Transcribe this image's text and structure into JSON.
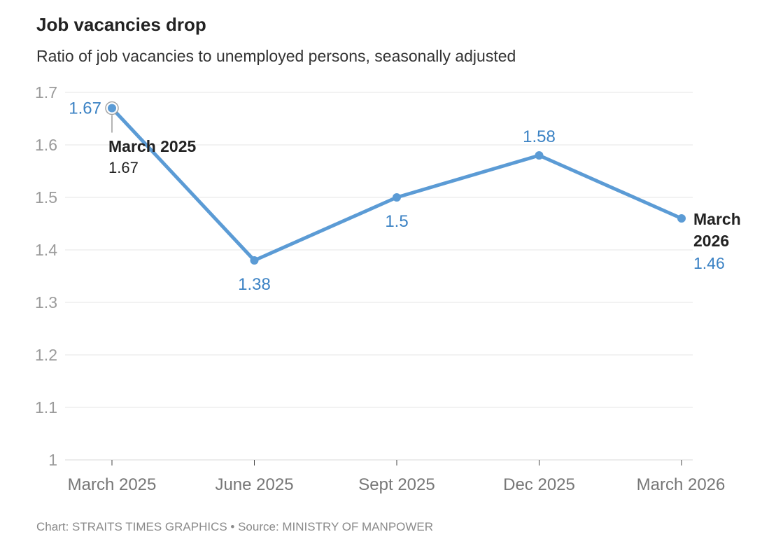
{
  "header": {
    "title": "Job vacancies drop",
    "subtitle": "Ratio of job vacancies to unemployed persons, seasonally adjusted"
  },
  "footer": {
    "text": "Chart: STRAITS TIMES GRAPHICS • Source: MINISTRY OF MANPOWER"
  },
  "chart_data": {
    "type": "line",
    "categories": [
      "March 2025",
      "June 2025",
      "Sept 2025",
      "Dec 2025",
      "March 2026"
    ],
    "series": [
      {
        "values": [
          1.67,
          1.38,
          1.5,
          1.58,
          1.46
        ],
        "data_labels": [
          "1.67",
          "1.38",
          "1.5",
          "1.58",
          "1.46"
        ],
        "color": "#5b9bd5"
      }
    ],
    "ylim": [
      1,
      1.7
    ],
    "yticks": [
      1,
      1.1,
      1.2,
      1.3,
      1.4,
      1.5,
      1.6,
      1.7
    ],
    "ytick_labels": [
      "1",
      "1.1",
      "1.2",
      "1.3",
      "1.4",
      "1.5",
      "1.6",
      "1.7"
    ],
    "grid": true,
    "label_color": "#3b82c4",
    "annotations": [
      {
        "category": "March 2025",
        "label": "March 2025",
        "value": "1.67"
      },
      {
        "category": "March 2026",
        "label": "March 2026",
        "label_lines": [
          "March",
          "2026"
        ],
        "value": "1.46"
      }
    ]
  }
}
